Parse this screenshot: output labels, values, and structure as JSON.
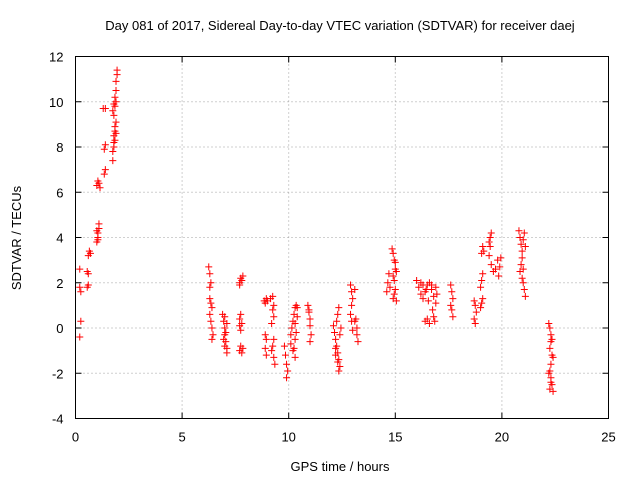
{
  "chart_data": {
    "type": "scatter",
    "title": "Day 081 of 2017, Sidereal Day-to-day VTEC variation (SDTVAR) for receiver daej",
    "xlabel": "GPS time / hours",
    "ylabel": "SDTVAR / TECUs",
    "xlim": [
      0,
      25
    ],
    "ylim": [
      -4,
      12
    ],
    "xticks": [
      0,
      5,
      10,
      15,
      20,
      25
    ],
    "yticks": [
      -4,
      -2,
      0,
      2,
      4,
      6,
      8,
      10,
      12
    ],
    "xtick_labels": [
      "0",
      "5",
      "10",
      "15",
      "20",
      "25"
    ],
    "ytick_labels": [
      "-4",
      "-2",
      "0",
      "2",
      "4",
      "6",
      "8",
      "10",
      "12"
    ],
    "grid": true,
    "marker": "+",
    "color": "#ff0000",
    "series": [
      {
        "name": "SDTVAR",
        "points": [
          [
            0.2,
            -0.4
          ],
          [
            0.25,
            0.3
          ],
          [
            0.2,
            1.8
          ],
          [
            0.25,
            1.6
          ],
          [
            0.2,
            2.6
          ],
          [
            0.55,
            1.8
          ],
          [
            0.6,
            1.9
          ],
          [
            0.55,
            2.5
          ],
          [
            0.6,
            2.4
          ],
          [
            0.6,
            3.2
          ],
          [
            0.65,
            3.4
          ],
          [
            0.7,
            3.3
          ],
          [
            1.0,
            3.8
          ],
          [
            1.05,
            4.0
          ],
          [
            1.05,
            4.2
          ],
          [
            1.1,
            4.4
          ],
          [
            1.1,
            4.6
          ],
          [
            1.0,
            4.3
          ],
          [
            1.05,
            3.9
          ],
          [
            1.0,
            6.3
          ],
          [
            1.05,
            6.5
          ],
          [
            1.1,
            6.4
          ],
          [
            1.15,
            6.2
          ],
          [
            1.35,
            6.8
          ],
          [
            1.4,
            7.0
          ],
          [
            1.35,
            7.9
          ],
          [
            1.4,
            8.1
          ],
          [
            1.3,
            9.7
          ],
          [
            1.4,
            9.7
          ],
          [
            1.75,
            7.4
          ],
          [
            1.75,
            7.8
          ],
          [
            1.8,
            8.0
          ],
          [
            1.8,
            8.2
          ],
          [
            1.8,
            8.5
          ],
          [
            1.85,
            8.7
          ],
          [
            1.85,
            8.9
          ],
          [
            1.9,
            9.1
          ],
          [
            1.9,
            8.6
          ],
          [
            1.85,
            8.3
          ],
          [
            1.8,
            9.4
          ],
          [
            1.85,
            9.8
          ],
          [
            1.9,
            10.0
          ],
          [
            1.85,
            10.2
          ],
          [
            1.9,
            10.5
          ],
          [
            1.9,
            10.9
          ],
          [
            1.95,
            11.2
          ],
          [
            1.95,
            11.4
          ],
          [
            1.8,
            9.9
          ],
          [
            1.75,
            9.6
          ],
          [
            6.25,
            2.7
          ],
          [
            6.3,
            2.4
          ],
          [
            6.35,
            2.0
          ],
          [
            6.3,
            1.8
          ],
          [
            6.35,
            1.1
          ],
          [
            6.4,
            0.9
          ],
          [
            6.3,
            0.6
          ],
          [
            6.35,
            0.3
          ],
          [
            6.4,
            0.0
          ],
          [
            6.45,
            -0.3
          ],
          [
            6.4,
            -0.5
          ],
          [
            6.3,
            1.3
          ],
          [
            6.9,
            0.6
          ],
          [
            6.95,
            0.3
          ],
          [
            7.0,
            0.0
          ],
          [
            7.0,
            -0.3
          ],
          [
            7.05,
            -0.6
          ],
          [
            7.1,
            -0.9
          ],
          [
            7.1,
            -1.1
          ],
          [
            7.0,
            -0.8
          ],
          [
            6.95,
            -0.5
          ],
          [
            7.05,
            -0.2
          ],
          [
            7.1,
            0.2
          ],
          [
            7.0,
            0.5
          ],
          [
            7.7,
            2.0
          ],
          [
            7.75,
            2.2
          ],
          [
            7.8,
            2.1
          ],
          [
            7.85,
            2.3
          ],
          [
            7.7,
            1.9
          ],
          [
            7.7,
            0.4
          ],
          [
            7.75,
            0.6
          ],
          [
            7.8,
            0.2
          ],
          [
            7.75,
            -0.1
          ],
          [
            7.7,
            0.1
          ],
          [
            7.7,
            -1.0
          ],
          [
            7.75,
            -0.8
          ],
          [
            7.8,
            -1.1
          ],
          [
            7.85,
            -0.9
          ],
          [
            8.85,
            1.2
          ],
          [
            8.9,
            1.1
          ],
          [
            8.95,
            1.3
          ],
          [
            9.0,
            1.2
          ],
          [
            8.9,
            -0.3
          ],
          [
            8.95,
            -0.5
          ],
          [
            8.9,
            -0.9
          ],
          [
            8.95,
            -1.2
          ],
          [
            9.2,
            -1.0
          ],
          [
            9.25,
            -0.8
          ],
          [
            9.3,
            -1.3
          ],
          [
            9.35,
            -1.6
          ],
          [
            9.3,
            -0.5
          ],
          [
            9.25,
            0.8
          ],
          [
            9.3,
            0.5
          ],
          [
            9.2,
            0.2
          ],
          [
            9.3,
            1.0
          ],
          [
            9.25,
            1.4
          ],
          [
            9.15,
            1.3
          ],
          [
            9.8,
            -0.8
          ],
          [
            9.85,
            -1.2
          ],
          [
            9.9,
            -1.6
          ],
          [
            9.9,
            -2.2
          ],
          [
            9.95,
            -1.9
          ],
          [
            10.1,
            -0.3
          ],
          [
            10.15,
            0.0
          ],
          [
            10.2,
            0.3
          ],
          [
            10.25,
            0.6
          ],
          [
            10.3,
            0.9
          ],
          [
            10.35,
            1.0
          ],
          [
            10.1,
            -0.7
          ],
          [
            10.2,
            -1.0
          ],
          [
            10.3,
            -1.3
          ],
          [
            10.25,
            -0.9
          ],
          [
            10.3,
            -0.5
          ],
          [
            10.35,
            -0.2
          ],
          [
            10.4,
            0.5
          ],
          [
            10.4,
            0.9
          ],
          [
            10.3,
            0.2
          ],
          [
            10.9,
            1.0
          ],
          [
            10.95,
            0.7
          ],
          [
            11.0,
            0.4
          ],
          [
            11.0,
            0.1
          ],
          [
            11.05,
            -0.3
          ],
          [
            11.0,
            -0.6
          ],
          [
            10.95,
            0.8
          ],
          [
            12.1,
            0.1
          ],
          [
            12.15,
            -0.2
          ],
          [
            12.2,
            -0.5
          ],
          [
            12.25,
            -0.8
          ],
          [
            12.3,
            -1.1
          ],
          [
            12.35,
            -1.4
          ],
          [
            12.4,
            -1.7
          ],
          [
            12.35,
            -1.9
          ],
          [
            12.3,
            -1.5
          ],
          [
            12.2,
            -1.2
          ],
          [
            12.25,
            0.3
          ],
          [
            12.3,
            0.6
          ],
          [
            12.35,
            0.9
          ],
          [
            12.2,
            -0.9
          ],
          [
            12.4,
            -0.3
          ],
          [
            12.45,
            0.0
          ],
          [
            12.9,
            1.9
          ],
          [
            12.95,
            1.6
          ],
          [
            13.0,
            1.3
          ],
          [
            12.95,
            1.0
          ],
          [
            12.9,
            0.6
          ],
          [
            12.95,
            0.3
          ],
          [
            13.0,
            -0.1
          ],
          [
            13.1,
            0.3
          ],
          [
            13.15,
            0.4
          ],
          [
            13.2,
            -0.3
          ],
          [
            13.25,
            -0.6
          ],
          [
            13.2,
            0.0
          ],
          [
            13.1,
            1.7
          ],
          [
            14.6,
            1.6
          ],
          [
            14.65,
            2.0
          ],
          [
            14.7,
            2.4
          ],
          [
            14.75,
            1.8
          ],
          [
            14.85,
            3.5
          ],
          [
            14.9,
            3.3
          ],
          [
            14.95,
            3.0
          ],
          [
            15.0,
            2.6
          ],
          [
            14.9,
            2.3
          ],
          [
            14.95,
            2.1
          ],
          [
            15.0,
            1.7
          ],
          [
            14.95,
            1.5
          ],
          [
            14.9,
            1.3
          ],
          [
            15.05,
            1.2
          ],
          [
            15.0,
            2.9
          ],
          [
            15.05,
            2.5
          ],
          [
            16.0,
            2.1
          ],
          [
            16.1,
            1.8
          ],
          [
            16.2,
            1.5
          ],
          [
            16.3,
            1.3
          ],
          [
            16.4,
            1.6
          ],
          [
            16.5,
            1.9
          ],
          [
            16.6,
            2.0
          ],
          [
            16.7,
            1.7
          ],
          [
            16.8,
            1.4
          ],
          [
            16.9,
            1.1
          ],
          [
            16.75,
            0.8
          ],
          [
            16.8,
            0.5
          ],
          [
            16.85,
            0.3
          ],
          [
            16.5,
            0.4
          ],
          [
            16.4,
            0.3
          ],
          [
            16.6,
            0.2
          ],
          [
            16.7,
            1.9
          ],
          [
            16.9,
            1.8
          ],
          [
            16.95,
            1.5
          ],
          [
            16.2,
            2.0
          ],
          [
            16.3,
            1.9
          ],
          [
            16.45,
            1.7
          ],
          [
            16.55,
            1.2
          ],
          [
            17.6,
            1.9
          ],
          [
            17.65,
            1.6
          ],
          [
            17.7,
            1.3
          ],
          [
            17.6,
            1.0
          ],
          [
            17.65,
            0.8
          ],
          [
            17.7,
            0.5
          ],
          [
            18.7,
            1.2
          ],
          [
            18.75,
            1.0
          ],
          [
            18.8,
            0.7
          ],
          [
            18.7,
            0.4
          ],
          [
            18.75,
            0.2
          ],
          [
            19.0,
            0.9
          ],
          [
            19.05,
            1.1
          ],
          [
            19.1,
            1.3
          ],
          [
            19.0,
            1.8
          ],
          [
            19.05,
            2.1
          ],
          [
            19.1,
            2.4
          ],
          [
            19.05,
            3.3
          ],
          [
            19.1,
            3.6
          ],
          [
            19.15,
            3.4
          ],
          [
            19.4,
            3.8
          ],
          [
            19.45,
            4.0
          ],
          [
            19.5,
            4.2
          ],
          [
            19.45,
            3.6
          ],
          [
            19.4,
            3.2
          ],
          [
            19.5,
            2.8
          ],
          [
            19.6,
            2.5
          ],
          [
            19.7,
            2.6
          ],
          [
            19.8,
            3.0
          ],
          [
            19.85,
            2.3
          ],
          [
            19.9,
            2.7
          ],
          [
            19.95,
            3.1
          ],
          [
            20.8,
            4.3
          ],
          [
            20.85,
            4.0
          ],
          [
            20.9,
            3.7
          ],
          [
            20.95,
            3.4
          ],
          [
            21.0,
            3.9
          ],
          [
            21.05,
            4.2
          ],
          [
            21.1,
            3.6
          ],
          [
            20.9,
            2.8
          ],
          [
            20.85,
            2.5
          ],
          [
            20.95,
            2.2
          ],
          [
            21.0,
            2.0
          ],
          [
            21.05,
            1.7
          ],
          [
            21.1,
            1.4
          ],
          [
            21.0,
            2.6
          ],
          [
            20.95,
            3.1
          ],
          [
            22.2,
            0.2
          ],
          [
            22.25,
            0.0
          ],
          [
            22.3,
            -0.3
          ],
          [
            22.3,
            -0.6
          ],
          [
            22.25,
            -0.9
          ],
          [
            22.35,
            -1.2
          ],
          [
            22.3,
            -1.6
          ],
          [
            22.25,
            -1.9
          ],
          [
            22.3,
            -2.2
          ],
          [
            22.35,
            -2.5
          ],
          [
            22.4,
            -2.8
          ],
          [
            22.3,
            -2.4
          ],
          [
            22.2,
            -2.0
          ],
          [
            22.25,
            -2.7
          ],
          [
            22.4,
            -1.3
          ],
          [
            22.35,
            -0.5
          ]
        ]
      }
    ]
  }
}
